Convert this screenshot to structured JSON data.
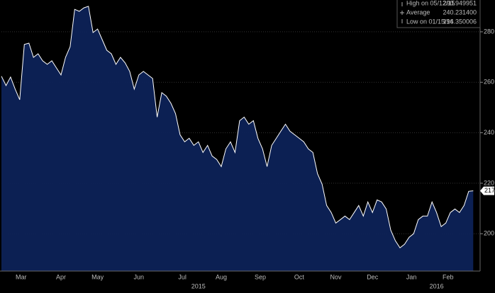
{
  "chart_data": {
    "type": "area",
    "values": [
      262.4,
      258.7,
      262.1,
      257.3,
      253.1,
      275.0,
      275.5,
      269.9,
      271.3,
      268.5,
      267.1,
      268.5,
      265.7,
      262.9,
      269.9,
      274.1,
      288.9,
      288.1,
      289.5,
      290.1,
      279.7,
      281.1,
      276.9,
      272.7,
      271.3,
      267.1,
      269.9,
      267.7,
      264.3,
      257.3,
      262.9,
      264.3,
      262.9,
      261.5,
      246.2,
      255.9,
      254.5,
      251.7,
      247.6,
      239.2,
      236.4,
      237.8,
      235.0,
      236.4,
      232.2,
      235.0,
      230.8,
      229.4,
      226.6,
      233.6,
      236.4,
      232.2,
      244.8,
      246.2,
      243.4,
      244.8,
      237.8,
      233.6,
      226.6,
      235.0,
      237.8,
      240.6,
      243.4,
      240.6,
      239.2,
      237.8,
      236.4,
      233.6,
      232.2,
      223.8,
      219.6,
      211.2,
      208.4,
      204.2,
      205.6,
      207.0,
      205.6,
      208.4,
      211.2,
      207.0,
      212.6,
      208.4,
      213.4,
      212.6,
      209.8,
      201.4,
      197.2,
      194.4,
      195.8,
      198.6,
      200.0,
      205.6,
      207.0,
      207.0,
      212.6,
      208.4,
      202.8,
      204.2,
      208.4,
      209.8,
      208.4,
      211.2,
      216.8,
      217
    ],
    "color": "#0d2257",
    "line_color": "#ffffff",
    "xlim": [
      0,
      104.5
    ],
    "ylim": [
      185.2,
      292.6
    ],
    "yticks": [
      200,
      220,
      240,
      260,
      280
    ],
    "xticks": [
      {
        "value": 4.3,
        "label": "Mar"
      },
      {
        "value": 13,
        "label": "Apr"
      },
      {
        "value": 21,
        "label": "May"
      },
      {
        "value": 30,
        "label": "Jun"
      },
      {
        "value": 39.5,
        "label": "Jul"
      },
      {
        "value": 48,
        "label": "Aug"
      },
      {
        "value": 56.5,
        "label": "Sep"
      },
      {
        "value": 65,
        "label": "Oct"
      },
      {
        "value": 73,
        "label": "Nov"
      },
      {
        "value": 81,
        "label": "Dec"
      },
      {
        "value": 89.5,
        "label": "Jan"
      },
      {
        "value": 97.5,
        "label": "Feb"
      }
    ],
    "years": [
      {
        "value": 43,
        "label": "2015"
      },
      {
        "value": 95,
        "label": "2016"
      }
    ],
    "grid": true,
    "legend": [
      {
        "label": "High on 05/12/15",
        "value": "290.949951"
      },
      {
        "label": "Average",
        "value": "240.231400"
      },
      {
        "label": "Low on 01/15/16",
        "value": "194.350006"
      }
    ]
  }
}
